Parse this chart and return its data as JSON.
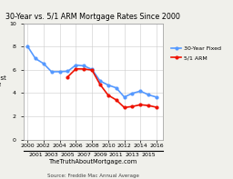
{
  "title": "30-Year vs. 5/1 ARM Mortgage Rates Since 2000",
  "xlabel": "TheTruthAboutMortgage.com",
  "source": "Source: Freddie Mac Annual Average",
  "years": [
    2000,
    2001,
    2002,
    2003,
    2004,
    2005,
    2006,
    2007,
    2008,
    2009,
    2010,
    2011,
    2012,
    2013,
    2014,
    2015,
    2016
  ],
  "fixed_30": [
    8.05,
    6.97,
    6.54,
    5.83,
    5.84,
    5.87,
    6.41,
    6.34,
    6.03,
    5.04,
    4.69,
    4.45,
    3.66,
    3.98,
    4.17,
    3.85,
    3.65
  ],
  "arm_51": [
    null,
    null,
    null,
    null,
    null,
    5.4,
    6.08,
    6.07,
    5.98,
    4.74,
    3.82,
    3.41,
    2.76,
    2.85,
    3.0,
    2.93,
    2.78
  ],
  "fixed_color": "#5599ff",
  "arm_color": "#ee1100",
  "plot_bg": "#ffffff",
  "fig_bg": "#f0f0eb",
  "grid_color": "#cccccc",
  "ylim": [
    0,
    10
  ],
  "yticks": [
    0,
    2,
    4,
    6,
    8,
    10
  ],
  "title_fontsize": 5.8,
  "label_fontsize": 4.8,
  "tick_fontsize": 4.5,
  "legend_fontsize": 4.5
}
